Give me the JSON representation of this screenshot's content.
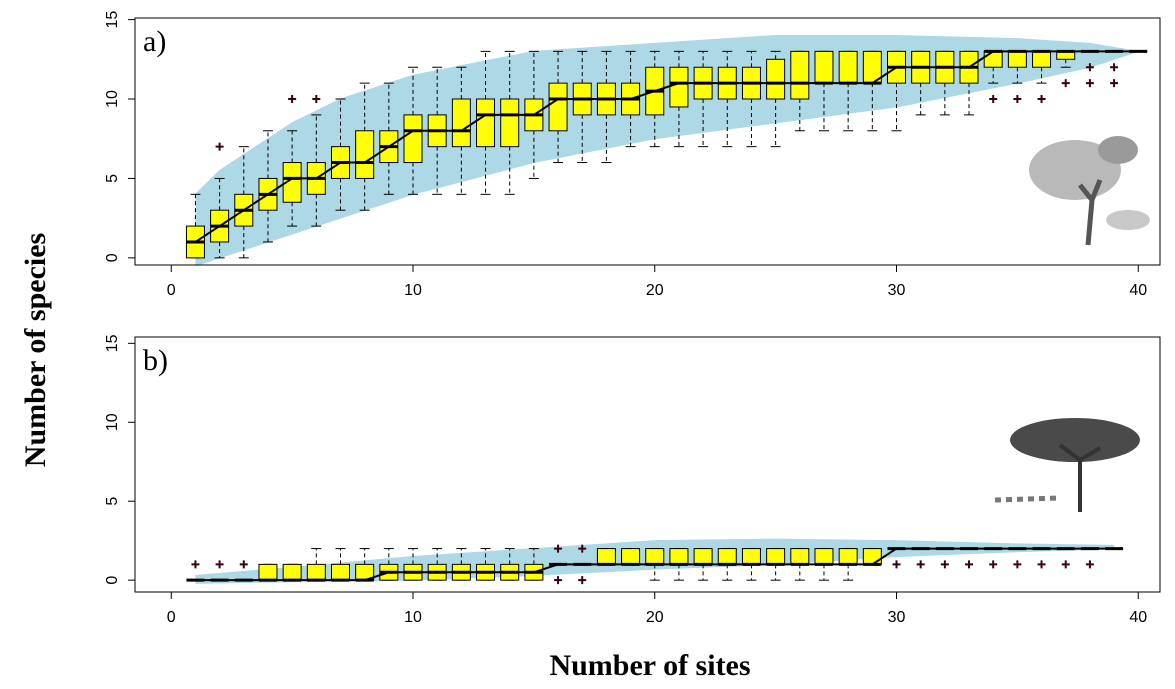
{
  "figure": {
    "ylabel": "Number of species",
    "xlabel": "Number of sites"
  },
  "chart_data": [
    {
      "type": "boxplot",
      "label": "a)",
      "xlim": [
        -1.5,
        40.9
      ],
      "ylim": [
        -0.45,
        15.1
      ],
      "xticks": [
        0,
        10,
        20,
        30,
        40
      ],
      "yticks": [
        0,
        5,
        10,
        15
      ],
      "box_color": "#ffff00",
      "band_color": "#add8e6",
      "x": [
        1,
        2,
        3,
        4,
        5,
        6,
        7,
        8,
        9,
        10,
        11,
        12,
        13,
        14,
        15,
        16,
        17,
        18,
        19,
        20,
        21,
        22,
        23,
        24,
        25,
        26,
        27,
        28,
        29,
        30,
        31,
        32,
        33,
        34,
        35,
        36,
        37,
        38,
        39,
        40
      ],
      "min": [
        0,
        0,
        0,
        1,
        2,
        2,
        3,
        3,
        4,
        4,
        4,
        4,
        4,
        4,
        5,
        6,
        6,
        6,
        7,
        7,
        7,
        7,
        7,
        7,
        7,
        8,
        8,
        8,
        8,
        8,
        9,
        9,
        9,
        11,
        11,
        11,
        12,
        13,
        13,
        13
      ],
      "q1": [
        0,
        1,
        2,
        3,
        3.5,
        4,
        5,
        5,
        6,
        6,
        7,
        7,
        7,
        7,
        8,
        8,
        9,
        9,
        9,
        9,
        9.5,
        10,
        10,
        10,
        10,
        10,
        11,
        11,
        11,
        11,
        11,
        11,
        11,
        12,
        12,
        12,
        12.5,
        13,
        13,
        13
      ],
      "median": [
        1,
        2,
        3,
        4,
        5,
        5,
        6,
        6,
        7,
        8,
        8,
        8,
        9,
        9,
        9,
        10,
        10,
        10,
        10,
        10.5,
        11,
        11,
        11,
        11,
        11,
        11,
        11,
        11,
        11,
        12,
        12,
        12,
        12,
        13,
        13,
        13,
        13,
        13,
        13,
        13
      ],
      "q3": [
        2,
        3,
        4,
        5,
        6,
        6,
        7,
        8,
        8,
        9,
        9,
        10,
        10,
        10,
        10,
        11,
        11,
        11,
        11,
        12,
        12,
        12,
        12,
        12,
        12.5,
        13,
        13,
        13,
        13,
        13,
        13,
        13,
        13,
        13,
        13,
        13,
        13,
        13,
        13,
        13
      ],
      "max": [
        4,
        5,
        7,
        8,
        8,
        9,
        10,
        11,
        11,
        12,
        12,
        12,
        13,
        13,
        13,
        13,
        13,
        13,
        13,
        13,
        13,
        13,
        13,
        13,
        13,
        13,
        13,
        13,
        13,
        13,
        13,
        13,
        13,
        13,
        13,
        13,
        13,
        13,
        13,
        13
      ],
      "outliers": [
        {
          "x": 2,
          "y": 7
        },
        {
          "x": 5,
          "y": 10
        },
        {
          "x": 6,
          "y": 10
        },
        {
          "x": 34,
          "y": 10
        },
        {
          "x": 35,
          "y": 10
        },
        {
          "x": 36,
          "y": 10
        },
        {
          "x": 37,
          "y": 11
        },
        {
          "x": 38,
          "y": 11
        },
        {
          "x": 38,
          "y": 12
        },
        {
          "x": 39,
          "y": 11
        },
        {
          "x": 39,
          "y": 12
        }
      ],
      "envelope": {
        "x": [
          1,
          2,
          3,
          5,
          7,
          10,
          15,
          20,
          25,
          30,
          35,
          38,
          40
        ],
        "upper": [
          4,
          5.5,
          6.5,
          8.5,
          10,
          11.5,
          13,
          13.5,
          14,
          14,
          13.8,
          13.5,
          13
        ],
        "lower": [
          -0.5,
          0,
          0.5,
          1.5,
          2.5,
          4,
          6,
          7.5,
          8.5,
          9.5,
          11,
          12,
          13
        ]
      }
    },
    {
      "type": "boxplot",
      "label": "b)",
      "xlim": [
        -1.5,
        40.9
      ],
      "ylim": [
        -0.75,
        15.4
      ],
      "xticks": [
        0,
        10,
        20,
        30,
        40
      ],
      "yticks": [
        0,
        5,
        10,
        15
      ],
      "box_color": "#ffff00",
      "band_color": "#add8e6",
      "x": [
        1,
        2,
        3,
        4,
        5,
        6,
        7,
        8,
        9,
        10,
        11,
        12,
        13,
        14,
        15,
        16,
        17,
        18,
        19,
        20,
        21,
        22,
        23,
        24,
        25,
        26,
        27,
        28,
        29,
        30,
        31,
        32,
        33,
        34,
        35,
        36,
        37,
        38,
        39
      ],
      "min": [
        0,
        0,
        0,
        0,
        0,
        0,
        0,
        0,
        0,
        0,
        0,
        0,
        0,
        0,
        0,
        1,
        1,
        1,
        1,
        0,
        0,
        0,
        0,
        0,
        0,
        0,
        0,
        0,
        1,
        2,
        2,
        2,
        2,
        2,
        2,
        2,
        2,
        2,
        2
      ],
      "q1": [
        0,
        0,
        0,
        0,
        0,
        0,
        0,
        0,
        0,
        0,
        0,
        0,
        0,
        0,
        0,
        1,
        1,
        1,
        1,
        1,
        1,
        1,
        1,
        1,
        1,
        1,
        1,
        1,
        1,
        2,
        2,
        2,
        2,
        2,
        2,
        2,
        2,
        2,
        2
      ],
      "median": [
        0,
        0,
        0,
        0,
        0,
        0,
        0,
        0,
        0.5,
        0.5,
        0.5,
        0.5,
        0.5,
        0.5,
        0.5,
        1,
        1,
        1,
        1,
        1,
        1,
        1,
        1,
        1,
        1,
        1,
        1,
        1,
        1,
        2,
        2,
        2,
        2,
        2,
        2,
        2,
        2,
        2,
        2
      ],
      "q3": [
        0,
        0,
        0,
        1,
        1,
        1,
        1,
        1,
        1,
        1,
        1,
        1,
        1,
        1,
        1,
        1,
        1,
        2,
        2,
        2,
        2,
        2,
        2,
        2,
        2,
        2,
        2,
        2,
        2,
        2,
        2,
        2,
        2,
        2,
        2,
        2,
        2,
        2,
        2
      ],
      "max": [
        0,
        0,
        0,
        1,
        1,
        2,
        2,
        2,
        2,
        2,
        2,
        2,
        2,
        2,
        2,
        1,
        1,
        2,
        2,
        2,
        2,
        2,
        2,
        2,
        2,
        2,
        2,
        2,
        2,
        2,
        2,
        2,
        2,
        2,
        2,
        2,
        2,
        2,
        2
      ],
      "outliers": [
        {
          "x": 1,
          "y": 1
        },
        {
          "x": 2,
          "y": 1
        },
        {
          "x": 3,
          "y": 1
        },
        {
          "x": 16,
          "y": 0
        },
        {
          "x": 16,
          "y": 2
        },
        {
          "x": 17,
          "y": 0
        },
        {
          "x": 17,
          "y": 2
        },
        {
          "x": 30,
          "y": 1
        },
        {
          "x": 31,
          "y": 1
        },
        {
          "x": 32,
          "y": 1
        },
        {
          "x": 33,
          "y": 1
        },
        {
          "x": 34,
          "y": 1
        },
        {
          "x": 35,
          "y": 1
        },
        {
          "x": 36,
          "y": 1
        },
        {
          "x": 37,
          "y": 1
        },
        {
          "x": 38,
          "y": 1
        }
      ],
      "envelope": {
        "x": [
          1,
          5,
          10,
          15,
          20,
          25,
          30,
          35,
          39
        ],
        "upper": [
          0.3,
          0.8,
          1.5,
          2,
          2.5,
          2.6,
          2.5,
          2.3,
          2.2
        ],
        "lower": [
          -0.2,
          -0.1,
          0,
          0.3,
          0.7,
          1,
          1.5,
          1.8,
          2
        ]
      }
    }
  ]
}
